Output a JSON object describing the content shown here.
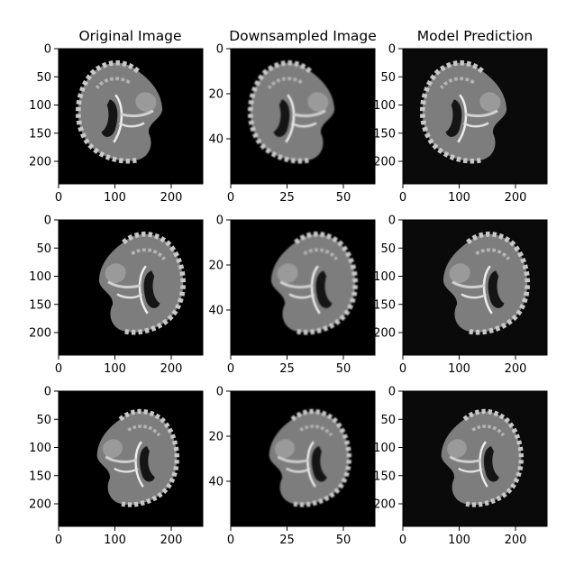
{
  "figure": {
    "background": "#ffffff",
    "columns": [
      {
        "title": "Original Image"
      },
      {
        "title": "Downsampled Image"
      },
      {
        "title": "Model Prediction"
      }
    ],
    "rows": 3,
    "panel_backgrounds": [
      "#000000",
      "#000000",
      "#0a0a0a"
    ],
    "axes": {
      "original": {
        "xticks": [
          "0",
          "100",
          "200"
        ],
        "yticks": [
          "0",
          "50",
          "100",
          "150",
          "200"
        ],
        "xlim": [
          0,
          256
        ],
        "ylim": [
          240,
          0
        ]
      },
      "downsampled": {
        "xticks": [
          "0",
          "25",
          "50"
        ],
        "yticks": [
          "0",
          "20",
          "40"
        ],
        "xlim": [
          0,
          64
        ],
        "ylim": [
          60,
          0
        ]
      },
      "prediction": {
        "xticks": [
          "0",
          "100",
          "200"
        ],
        "yticks": [
          "0",
          "50",
          "100",
          "150",
          "200"
        ],
        "xlim": [
          0,
          256
        ],
        "ylim": [
          240,
          0
        ]
      }
    },
    "image_content": "grayscale sagittal brain MRI slices"
  }
}
